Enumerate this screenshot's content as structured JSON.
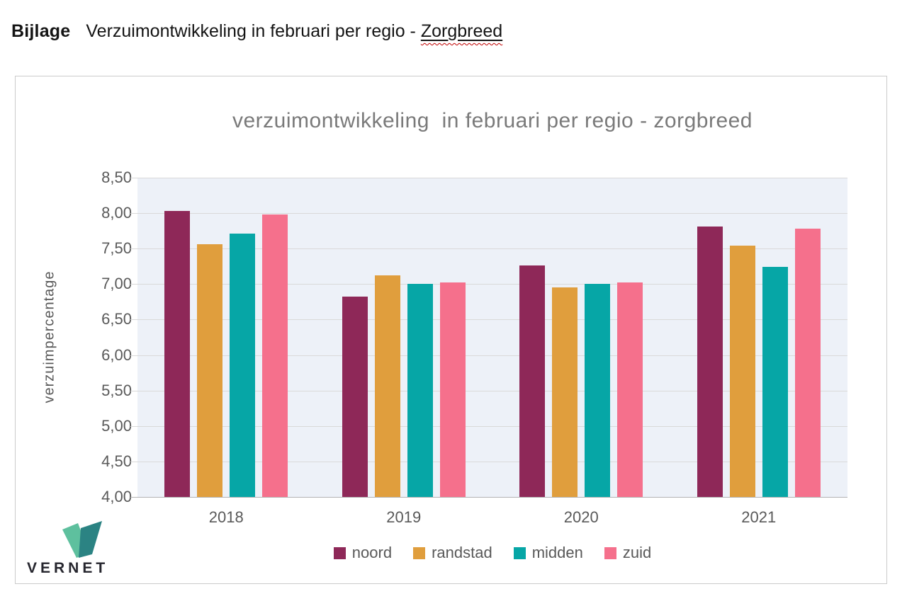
{
  "header": {
    "label": "Bijlage",
    "title": "Verzuimontwikkeling in februari per regio  - ",
    "link": "Zorgbreed"
  },
  "chart_data": {
    "type": "bar",
    "title": "verzuimontwikkeling  in februari per regio - zorgbreed",
    "categories": [
      "2018",
      "2019",
      "2020",
      "2021"
    ],
    "series": [
      {
        "name": "noord",
        "color": "#8e2858",
        "values": [
          8.03,
          6.82,
          7.26,
          7.81
        ]
      },
      {
        "name": "randstad",
        "color": "#e09e3d",
        "values": [
          7.56,
          7.12,
          6.95,
          7.54
        ]
      },
      {
        "name": "midden",
        "color": "#06a6a6",
        "values": [
          7.71,
          7.0,
          7.0,
          7.24
        ]
      },
      {
        "name": "zuid",
        "color": "#f5708c",
        "values": [
          7.98,
          7.02,
          7.02,
          7.78
        ]
      }
    ],
    "xlabel": "",
    "ylabel": "verzuimpercentage",
    "ylim": [
      4.0,
      8.5
    ],
    "ytick_step": 0.5,
    "ytick_labels": [
      "8,50",
      "8,00",
      "7,50",
      "7,00",
      "6,50",
      "6,00",
      "5,50",
      "5,00",
      "4,50",
      "4,00"
    ],
    "grid": true,
    "legend_position": "bottom",
    "decimal_separator": ","
  },
  "logo": {
    "text": "VERNET"
  },
  "colors": {
    "plot_background": "#edf1f8",
    "gridline": "#d9d9d9",
    "axis_line": "#b3b3b3",
    "title_text": "#7a7a7a",
    "tick_text": "#595959",
    "card_border": "#cbcbcb",
    "squiggle_red": "#c00000",
    "logo_green_light": "#5ec09e",
    "logo_teal_dark": "#2b8383"
  }
}
